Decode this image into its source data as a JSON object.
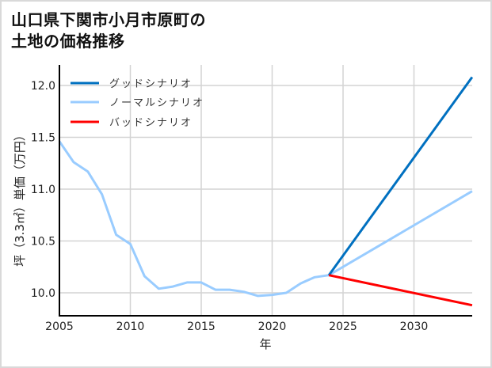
{
  "title_line1": "山口県下関市小月市原町の",
  "title_line2": "土地の価格推移",
  "chart_data": {
    "type": "line",
    "title": "山口県下関市小月市原町の土地の価格推移",
    "xlabel": "年",
    "ylabel": "坪（3.3㎡）単価（万円）",
    "xlim": [
      2005,
      2034.1
    ],
    "ylim": [
      9.78,
      12.2
    ],
    "xticks": [
      2005,
      2010,
      2015,
      2020,
      2025,
      2030
    ],
    "yticks": [
      10.0,
      10.5,
      11.0,
      11.5,
      12.0
    ],
    "ytick_labels": [
      "10.0",
      "10.5",
      "11.0",
      "11.5",
      "12.0"
    ],
    "grid": true,
    "legend_position": "upper left",
    "series": [
      {
        "name": "グッドシナリオ",
        "color": "#0070c0",
        "x": [
          2024,
          2034.1
        ],
        "values": [
          10.17,
          12.08
        ]
      },
      {
        "name": "ノーマルシナリオ",
        "color": "#99ccff",
        "x": [
          2005,
          2006,
          2007,
          2008,
          2009,
          2010,
          2011,
          2012,
          2013,
          2014,
          2015,
          2016,
          2017,
          2018,
          2019,
          2020,
          2021,
          2022,
          2023,
          2024,
          2034.1
        ],
        "values": [
          11.46,
          11.26,
          11.17,
          10.95,
          10.56,
          10.47,
          10.16,
          10.04,
          10.06,
          10.1,
          10.1,
          10.03,
          10.03,
          10.01,
          9.97,
          9.98,
          10.0,
          10.09,
          10.15,
          10.17,
          10.98
        ]
      },
      {
        "name": "バッドシナリオ",
        "color": "#ff0000",
        "x": [
          2024,
          2034.1
        ],
        "values": [
          10.17,
          9.88
        ]
      }
    ]
  },
  "legend": [
    {
      "label": "グッドシナリオ",
      "color": "#0070c0"
    },
    {
      "label": "ノーマルシナリオ",
      "color": "#99ccff"
    },
    {
      "label": "バッドシナリオ",
      "color": "#ff0000"
    }
  ],
  "axis": {
    "x_label": "年",
    "y_label": "坪（3.3㎡）単価（万円）",
    "x_ticks": [
      "2005",
      "2010",
      "2015",
      "2020",
      "2025",
      "2030"
    ],
    "y_ticks": [
      "10.0",
      "10.5",
      "11.0",
      "11.5",
      "12.0"
    ]
  }
}
